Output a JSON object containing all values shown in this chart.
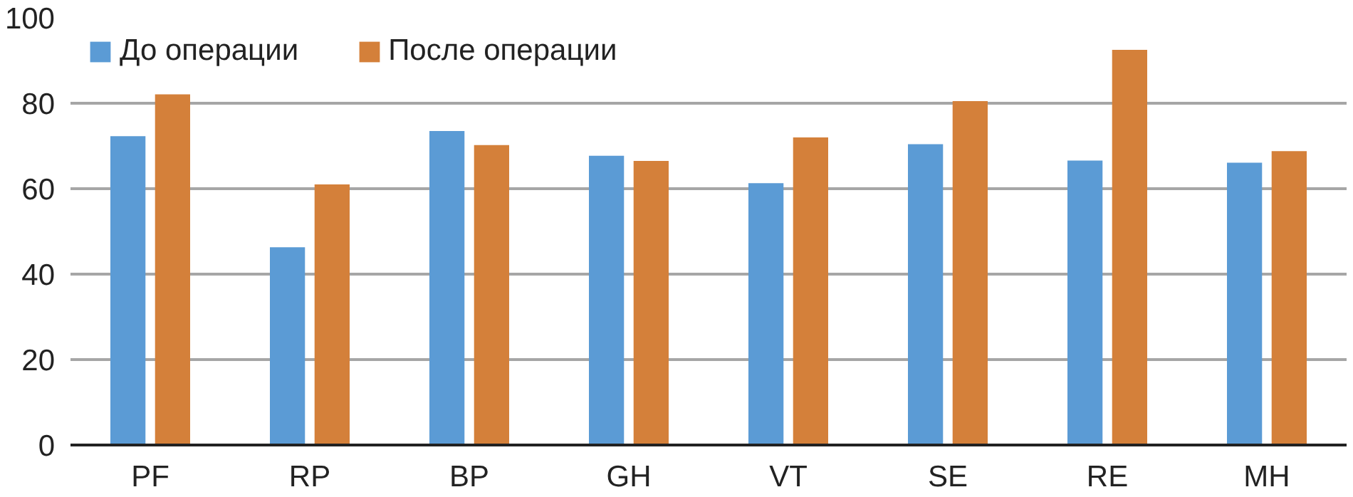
{
  "chart_data": {
    "type": "bar",
    "categories": [
      "PF",
      "RP",
      "BP",
      "GH",
      "VT",
      "SE",
      "RE",
      "MH"
    ],
    "series": [
      {
        "name": "До операции",
        "color": "#5b9bd5",
        "values": [
          72.3,
          46.3,
          73.5,
          67.7,
          61.3,
          70.4,
          66.6,
          66.1
        ]
      },
      {
        "name": "После операции",
        "color": "#d4803a",
        "values": [
          82.1,
          61.0,
          70.2,
          66.5,
          72.0,
          80.5,
          92.5,
          68.8
        ]
      }
    ],
    "ylim": [
      0,
      100
    ],
    "yticks": [
      0,
      20,
      40,
      60,
      80,
      100
    ],
    "grid": "y",
    "legend": "top left"
  }
}
